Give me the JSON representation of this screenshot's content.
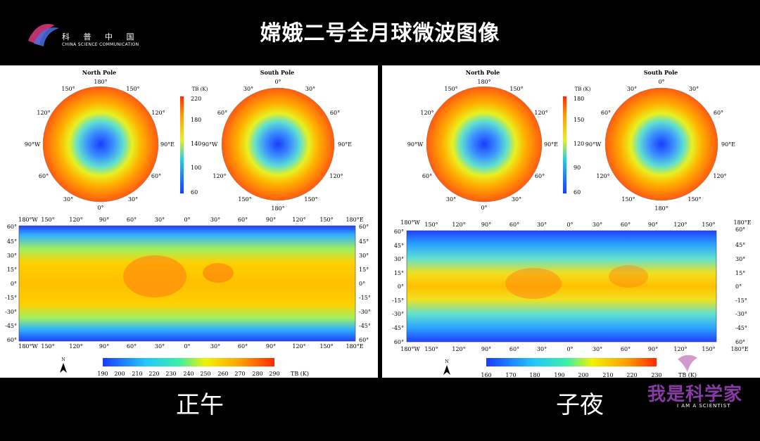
{
  "header": {
    "title": "嫦娥二号全月球微波图像",
    "logo_cn": "科 普 中 国",
    "logo_en": "CHINA SCIENCE COMMUNICATION"
  },
  "panels": [
    {
      "label": "正午",
      "north_pole_title": "North Pole",
      "south_pole_title": "South Pole",
      "polar_colorbar_title": "TB (K)",
      "polar_colorbar_ticks": [
        "220",
        "180",
        "140",
        "100",
        "60"
      ],
      "map_colorbar_ticks": [
        "190",
        "200",
        "210",
        "220",
        "230",
        "240",
        "250",
        "260",
        "270",
        "280",
        "290"
      ],
      "map_colorbar_unit": "TB (K)"
    },
    {
      "label": "子夜",
      "north_pole_title": "North Pole",
      "south_pole_title": "South Pole",
      "polar_colorbar_title": "TB (K)",
      "polar_colorbar_ticks": [
        "180",
        "150",
        "120",
        "90",
        "60"
      ],
      "map_colorbar_ticks": [
        "160",
        "170",
        "180",
        "190",
        "200",
        "210",
        "220",
        "230"
      ],
      "map_colorbar_unit": "TB (K)"
    }
  ],
  "polar_labels": {
    "north": {
      "top": "180°",
      "tr": "150°",
      "tl": "150°",
      "rt": "120°",
      "lt": "120°",
      "right": "90°E",
      "left": "90°W",
      "rb": "60°",
      "lb": "60°",
      "br": "30°",
      "bl": "30°",
      "bottom": "0°"
    },
    "south": {
      "top": "0°",
      "tr": "30°",
      "tl": "30°",
      "rt": "60°",
      "lt": "60°",
      "right": "90°E",
      "left": "90°W",
      "rb": "120°",
      "lb": "120°",
      "br": "150°",
      "bl": "150°",
      "bottom": "180°"
    }
  },
  "map_x_ticks": [
    "180°W",
    "150°",
    "120°",
    "90°",
    "60°",
    "30°",
    "0°",
    "30°",
    "60°",
    "90°",
    "120°",
    "150°",
    "180°E"
  ],
  "map_y_ticks": [
    "60°",
    "45°",
    "30°",
    "15°",
    "0°",
    "-15°",
    "-30°",
    "-45°",
    "60°"
  ],
  "north_arrow": "N",
  "watermark": {
    "cn": "我是科学家",
    "en": "I AM A SCIENTIST"
  },
  "colors": {
    "background": "#000000",
    "panel": "#ffffff",
    "scale_low": "#1a3cff",
    "scale_mid": "#f2f200",
    "scale_high": "#ff2a00",
    "watermark": "#8a3aa7"
  }
}
